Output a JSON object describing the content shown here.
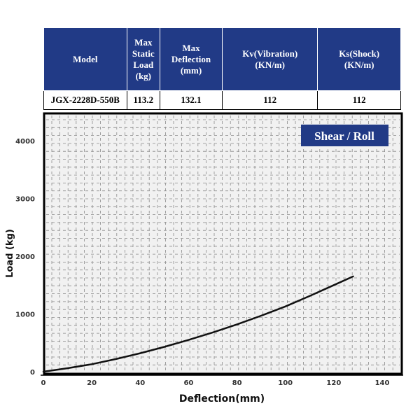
{
  "spec_table": {
    "headers": [
      "Model",
      "Max Static Load (kg)",
      "Max Deflection (mm)",
      "Kv(Vibration) (KN/m)",
      "Ks(Shock) (KN/m)"
    ],
    "header_lines": [
      [
        "Model"
      ],
      [
        "Max",
        "Static",
        "Load",
        "(kg)"
      ],
      [
        "Max",
        "Deflection",
        "(mm)"
      ],
      [
        "Kv(Vibration)",
        "(KN/m)"
      ],
      [
        "Ks(Shock)",
        "(KN/m)"
      ]
    ],
    "row": [
      "JGX-2228D-550B",
      "113.2",
      "132.1",
      "112",
      "112"
    ]
  },
  "colors": {
    "header_bg": "#213a86",
    "plot_bg": "#f1f1f1",
    "grid": "#8a8a8a",
    "curve": "#111111",
    "badge_bg": "#213a86",
    "badge_text": "#ffffff"
  },
  "chart_data": {
    "type": "line",
    "title": "",
    "badge": "Shear / Roll",
    "xlabel": "Deflection(mm)",
    "ylabel": "Load (kg)",
    "xlim": [
      0,
      148
    ],
    "ylim": [
      0,
      4250
    ],
    "xticks": [
      0,
      20,
      40,
      60,
      80,
      100,
      120,
      140
    ],
    "yticks": [
      0,
      1000,
      2000,
      3000,
      4000
    ],
    "grid": true,
    "series": [
      {
        "x": [
          0,
          10,
          20,
          30,
          40,
          50,
          60,
          70,
          80,
          90,
          100,
          110,
          120,
          128
        ],
        "y": [
          0,
          60,
          130,
          220,
          320,
          430,
          550,
          680,
          820,
          970,
          1130,
          1310,
          1500,
          1650
        ]
      }
    ]
  }
}
